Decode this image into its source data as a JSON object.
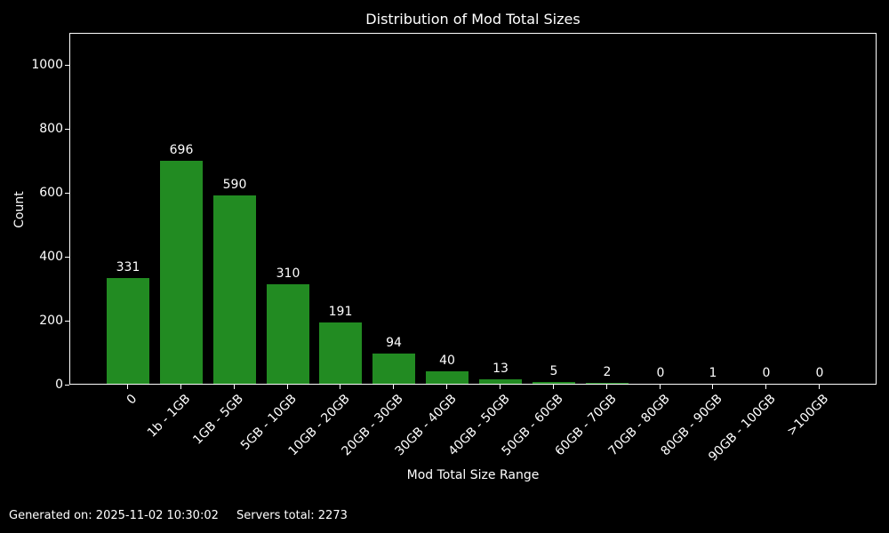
{
  "chart_data": {
    "type": "bar",
    "title": "Distribution of Mod Total Sizes",
    "xlabel": "Mod Total Size Range",
    "ylabel": "Count",
    "categories": [
      "0",
      "1b - 1GB",
      "1GB - 5GB",
      "5GB - 10GB",
      "10GB - 20GB",
      "20GB - 30GB",
      "30GB - 40GB",
      "40GB - 50GB",
      "50GB - 60GB",
      "60GB - 70GB",
      "70GB - 80GB",
      "80GB - 90GB",
      "90GB - 100GB",
      ">100GB"
    ],
    "values": [
      331,
      696,
      590,
      310,
      191,
      94,
      40,
      13,
      5,
      2,
      0,
      1,
      0,
      0
    ],
    "yticks": [
      0,
      200,
      400,
      600,
      800,
      1000
    ],
    "ylim": [
      0,
      1100
    ],
    "grid": false,
    "legend_position": "none",
    "bar_color": "#228B22",
    "background_color": "#000000",
    "text_color": "#ffffff"
  },
  "footer": {
    "generated_on": "Generated on: 2025-11-02 10:30:02",
    "servers_total": "Servers total: 2273"
  }
}
